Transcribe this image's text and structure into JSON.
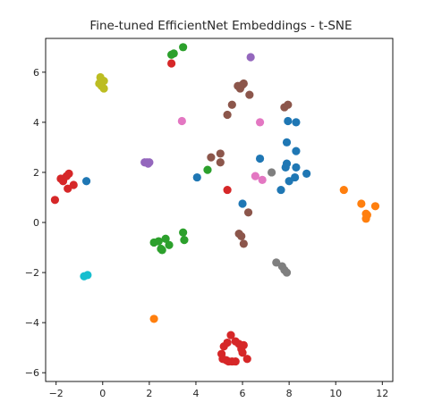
{
  "chart_data": {
    "type": "scatter",
    "title": "Fine-tuned EfficientNet Embeddings - t-SNE",
    "xlabel": "",
    "ylabel": "",
    "xlim": [
      -2.45,
      12.45
    ],
    "ylim": [
      -6.35,
      7.35
    ],
    "xticks": [
      -2,
      0,
      2,
      4,
      6,
      8,
      10,
      12
    ],
    "yticks": [
      -6,
      -4,
      -2,
      0,
      2,
      4,
      6
    ],
    "grid": false,
    "legend": "none",
    "series": [
      {
        "color": "#1f77b4",
        "points": [
          [
            -0.7,
            1.65
          ],
          [
            4.05,
            1.8
          ],
          [
            6.0,
            0.75
          ],
          [
            6.75,
            2.55
          ],
          [
            7.65,
            1.3
          ],
          [
            7.85,
            2.2
          ],
          [
            7.9,
            2.35
          ],
          [
            8.0,
            1.65
          ],
          [
            8.25,
            1.8
          ],
          [
            8.3,
            2.2
          ],
          [
            8.75,
            1.95
          ],
          [
            7.9,
            3.2
          ],
          [
            8.3,
            2.85
          ],
          [
            7.95,
            4.05
          ],
          [
            8.3,
            4.0
          ]
        ]
      },
      {
        "color": "#ff7f0e",
        "points": [
          [
            10.35,
            1.3
          ],
          [
            11.1,
            0.75
          ],
          [
            11.3,
            0.35
          ],
          [
            11.3,
            0.15
          ],
          [
            11.35,
            0.3
          ],
          [
            11.7,
            0.65
          ],
          [
            2.2,
            -3.85
          ]
        ]
      },
      {
        "color": "#2ca02c",
        "points": [
          [
            2.95,
            6.7
          ],
          [
            3.05,
            6.75
          ],
          [
            3.45,
            7.0
          ],
          [
            4.5,
            2.1
          ],
          [
            2.2,
            -0.8
          ],
          [
            2.4,
            -0.75
          ],
          [
            2.5,
            -1.05
          ],
          [
            2.55,
            -1.1
          ],
          [
            2.7,
            -0.65
          ],
          [
            2.85,
            -0.9
          ],
          [
            3.45,
            -0.4
          ],
          [
            3.5,
            -0.7
          ]
        ]
      },
      {
        "color": "#d62728",
        "points": [
          [
            2.95,
            6.35
          ],
          [
            -2.05,
            0.9
          ],
          [
            -1.8,
            1.75
          ],
          [
            -1.7,
            1.65
          ],
          [
            -1.55,
            1.85
          ],
          [
            -1.45,
            1.95
          ],
          [
            -1.5,
            1.35
          ],
          [
            -1.25,
            1.5
          ],
          [
            5.35,
            1.3
          ],
          [
            5.2,
            -4.95
          ],
          [
            5.35,
            -4.8
          ],
          [
            5.5,
            -4.5
          ],
          [
            5.7,
            -4.75
          ],
          [
            5.85,
            -4.85
          ],
          [
            5.95,
            -5.05
          ],
          [
            6.05,
            -4.9
          ],
          [
            5.1,
            -5.25
          ],
          [
            5.15,
            -5.45
          ],
          [
            5.3,
            -5.5
          ],
          [
            5.4,
            -5.55
          ],
          [
            5.55,
            -5.55
          ],
          [
            5.7,
            -5.55
          ],
          [
            6.0,
            -5.2
          ],
          [
            6.2,
            -5.45
          ]
        ]
      },
      {
        "color": "#9467bd",
        "points": [
          [
            6.35,
            6.6
          ],
          [
            1.8,
            2.4
          ],
          [
            1.9,
            2.4
          ],
          [
            1.95,
            2.35
          ],
          [
            2.0,
            2.4
          ]
        ]
      },
      {
        "color": "#8c564b",
        "points": [
          [
            5.8,
            5.45
          ],
          [
            5.9,
            5.35
          ],
          [
            6.0,
            5.5
          ],
          [
            6.05,
            5.55
          ],
          [
            6.3,
            5.1
          ],
          [
            5.55,
            4.7
          ],
          [
            5.35,
            4.3
          ],
          [
            7.8,
            4.6
          ],
          [
            7.95,
            4.7
          ],
          [
            4.65,
            2.6
          ],
          [
            5.05,
            2.75
          ],
          [
            5.05,
            2.4
          ],
          [
            6.25,
            0.4
          ],
          [
            5.85,
            -0.45
          ],
          [
            5.95,
            -0.55
          ],
          [
            6.05,
            -0.85
          ]
        ]
      },
      {
        "color": "#e377c2",
        "points": [
          [
            3.4,
            4.05
          ],
          [
            6.75,
            4.0
          ],
          [
            6.55,
            1.85
          ],
          [
            6.85,
            1.7
          ]
        ]
      },
      {
        "color": "#7f7f7f",
        "points": [
          [
            7.25,
            2.0
          ],
          [
            7.45,
            -1.6
          ],
          [
            7.7,
            -1.75
          ],
          [
            7.8,
            -1.9
          ],
          [
            7.9,
            -2.0
          ]
        ]
      },
      {
        "color": "#bcbd22",
        "points": [
          [
            -0.15,
            5.55
          ],
          [
            -0.1,
            5.8
          ],
          [
            0.05,
            5.65
          ],
          [
            -0.05,
            5.45
          ],
          [
            0.05,
            5.35
          ],
          [
            -0.1,
            5.6
          ]
        ]
      },
      {
        "color": "#17becf",
        "points": [
          [
            -0.8,
            -2.15
          ],
          [
            -0.65,
            -2.1
          ]
        ]
      }
    ]
  }
}
